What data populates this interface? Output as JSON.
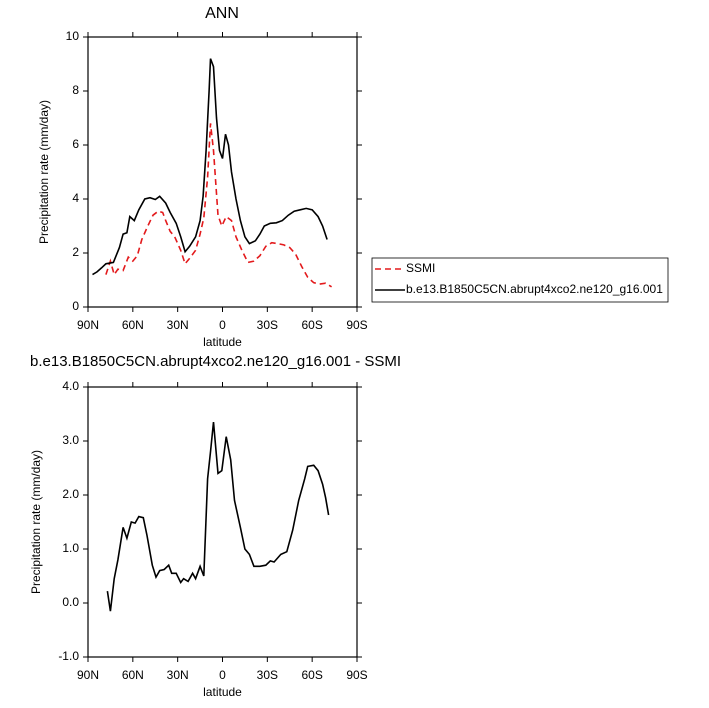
{
  "chart_data": [
    {
      "type": "line",
      "title": "ANN",
      "xlabel": "latitude",
      "ylabel": "Precipitation rate (mm/day)",
      "xlim": [
        90,
        -90
      ],
      "xticks": [
        {
          "value": 90,
          "label": "90N"
        },
        {
          "value": 60,
          "label": "60N"
        },
        {
          "value": 30,
          "label": "30N"
        },
        0,
        {
          "value": -30,
          "label": "30S"
        },
        {
          "value": -60,
          "label": "60S"
        },
        {
          "value": -90,
          "label": "90S"
        }
      ],
      "ylim": [
        0,
        10
      ],
      "yticks": [
        0,
        2,
        4,
        6,
        8,
        10
      ],
      "legend": "right",
      "series": [
        {
          "name": "SSMI",
          "color": "#e31a1c",
          "dash": true,
          "x": [
            78,
            75,
            72.5,
            70,
            66.5,
            63,
            60,
            57,
            54,
            50,
            46.5,
            43,
            40,
            38,
            35,
            32,
            28,
            25,
            22,
            18,
            15,
            12.5,
            10,
            8,
            6,
            3,
            0.5,
            -2.5,
            -6,
            -9,
            -13,
            -17,
            -21,
            -25,
            -29,
            -33,
            -37,
            -41,
            -45,
            -49,
            -53,
            -57,
            -61,
            -65,
            -69,
            -73
          ],
          "values": [
            1.2,
            1.7,
            1.2,
            1.4,
            1.35,
            1.85,
            1.7,
            1.9,
            2.5,
            3.0,
            3.4,
            3.55,
            3.5,
            3.2,
            2.8,
            2.6,
            2.1,
            1.6,
            1.8,
            2.1,
            2.7,
            3.3,
            4.8,
            6.8,
            5.8,
            3.4,
            3.0,
            3.35,
            3.2,
            2.6,
            2.1,
            1.65,
            1.7,
            1.9,
            2.25,
            2.38,
            2.35,
            2.3,
            2.2,
            1.95,
            1.5,
            1.1,
            0.9,
            0.85,
            0.88,
            0.75
          ]
        },
        {
          "name": "b.e13.B1850C5CN.abrupt4xco2.ne120_g16.001",
          "color": "#000000",
          "dash": false,
          "x": [
            87,
            84,
            81,
            78,
            73,
            69,
            66.5,
            64,
            62,
            59,
            56,
            52,
            48.5,
            45,
            42,
            38,
            35,
            31,
            28,
            25,
            22,
            18,
            15,
            13,
            11,
            9,
            8,
            6,
            4,
            2,
            0,
            -2,
            -4,
            -6,
            -9,
            -12,
            -15,
            -18,
            -22,
            -25,
            -28,
            -32,
            -36,
            -40,
            -44,
            -48,
            -52,
            -56,
            -60,
            -64,
            -67,
            -70
          ],
          "values": [
            1.2,
            1.3,
            1.45,
            1.6,
            1.65,
            2.2,
            2.7,
            2.75,
            3.35,
            3.2,
            3.6,
            4.0,
            4.05,
            3.98,
            4.1,
            3.85,
            3.5,
            3.1,
            2.6,
            2.05,
            2.25,
            2.6,
            3.2,
            4.1,
            5.8,
            8.0,
            9.2,
            8.9,
            7.0,
            5.8,
            5.5,
            6.4,
            6.0,
            5.0,
            4.0,
            3.2,
            2.6,
            2.35,
            2.45,
            2.7,
            3.0,
            3.1,
            3.12,
            3.2,
            3.4,
            3.55,
            3.6,
            3.65,
            3.6,
            3.35,
            3.0,
            2.5
          ]
        }
      ]
    },
    {
      "type": "line",
      "title": "b.e13.B1850C5CN.abrupt4xco2.ne120_g16.001 - SSMI",
      "xlabel": "latitude",
      "ylabel": "Precipitation rate (mm/day)",
      "xlim": [
        90,
        -90
      ],
      "xticks": [
        {
          "value": 90,
          "label": "90N"
        },
        {
          "value": 60,
          "label": "60N"
        },
        {
          "value": 30,
          "label": "30N"
        },
        0,
        {
          "value": -30,
          "label": "30S"
        },
        {
          "value": -60,
          "label": "60S"
        },
        {
          "value": -90,
          "label": "90S"
        }
      ],
      "ylim": [
        -1,
        4
      ],
      "yticks": [
        {
          "value": -1,
          "label": "-1.0"
        },
        {
          "value": 0,
          "label": "0.0"
        },
        {
          "value": 1,
          "label": "1.0"
        },
        {
          "value": 2,
          "label": "2.0"
        },
        {
          "value": 3,
          "label": "3.0"
        },
        {
          "value": 4,
          "label": "4.0"
        }
      ],
      "series": [
        {
          "color": "#000000",
          "dash": false,
          "x": [
            77,
            75,
            72.5,
            70,
            66.5,
            64,
            61,
            58.5,
            56,
            53,
            50.5,
            47,
            44.5,
            42,
            39,
            36,
            34,
            31,
            28,
            26,
            23,
            20,
            18,
            15,
            12.5,
            10,
            8,
            6,
            3,
            0.5,
            -2.5,
            -5.5,
            -8,
            -12,
            -15,
            -18,
            -21,
            -25,
            -29,
            -32,
            -34.5,
            -39,
            -43,
            -47,
            -51,
            -55,
            -57,
            -61,
            -64,
            -67,
            -69,
            -71
          ],
          "values": [
            0.22,
            -0.15,
            0.45,
            0.8,
            1.4,
            1.2,
            1.5,
            1.48,
            1.6,
            1.58,
            1.25,
            0.7,
            0.48,
            0.6,
            0.62,
            0.7,
            0.55,
            0.55,
            0.38,
            0.45,
            0.4,
            0.55,
            0.45,
            0.68,
            0.5,
            2.3,
            2.8,
            3.35,
            2.4,
            2.45,
            3.08,
            2.65,
            1.9,
            1.4,
            1.0,
            0.9,
            0.68,
            0.68,
            0.7,
            0.78,
            0.76,
            0.9,
            0.95,
            1.35,
            1.9,
            2.3,
            2.53,
            2.55,
            2.45,
            2.2,
            1.95,
            1.63
          ]
        }
      ]
    }
  ]
}
